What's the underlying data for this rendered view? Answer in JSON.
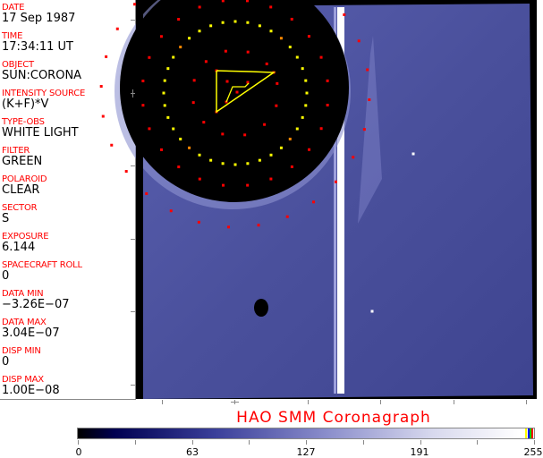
{
  "metadata_panel": {
    "fields": [
      {
        "label": "DATE",
        "value": "17 Sep 1987"
      },
      {
        "label": "TIME",
        "value": "17:34:11 UT"
      },
      {
        "label": "OBJECT",
        "value": "SUN:CORONA"
      },
      {
        "label": "INTENSITY SOURCE",
        "value": "(K+F)*V"
      },
      {
        "label": "TYPE-OBS",
        "value": "WHITE LIGHT"
      },
      {
        "label": "FILTER",
        "value": "GREEN"
      },
      {
        "label": "POLAROID",
        "value": "CLEAR"
      },
      {
        "label": "SECTOR",
        "value": "S"
      },
      {
        "label": "EXPOSURE",
        "value": "6.144"
      },
      {
        "label": "SPACECRAFT ROLL",
        "value": "0"
      },
      {
        "label": "DATA MIN",
        "value": "−3.26E−07"
      },
      {
        "label": "DATA MAX",
        "value": "3.04E−07"
      },
      {
        "label": "DISP MIN",
        "value": "0"
      },
      {
        "label": "DISP MAX",
        "value": "1.00E−08"
      }
    ]
  },
  "title": "HAO  SMM  Coronagraph",
  "colorbar": {
    "ticks": [
      "0",
      "63",
      "127",
      "191",
      "255"
    ],
    "min": 0,
    "max": 255,
    "end_colors": [
      "#ffff00",
      "#0000ff",
      "#00c000",
      "#ff0000"
    ]
  },
  "colors": {
    "label": "#ff0000",
    "overlay_yellow": "#ffff00",
    "overlay_red": "#ff0000",
    "field": "#4c529f"
  }
}
